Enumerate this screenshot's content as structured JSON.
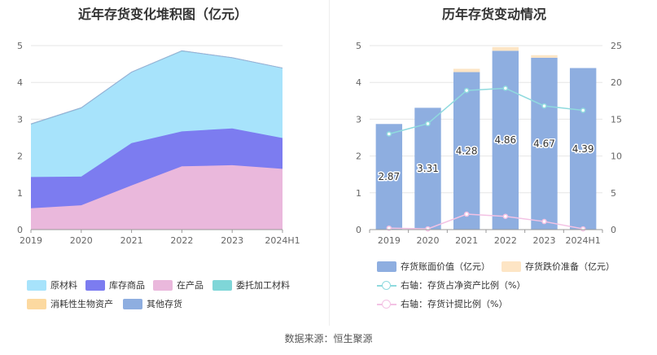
{
  "left_chart": {
    "title": "近年存货变化堆积图（亿元）",
    "legend": [
      {
        "name": "原材料",
        "color": "#a7e3fb"
      },
      {
        "name": "库存商品",
        "color": "#7c7cf0"
      },
      {
        "name": "在产品",
        "color": "#eab8dc"
      },
      {
        "name": "委托加工材料",
        "color": "#7fd6d8"
      },
      {
        "name": "消耗性生物资产",
        "color": "#fcd9a0"
      },
      {
        "name": "其他存货",
        "color": "#8eaee0"
      }
    ]
  },
  "right_chart": {
    "title": "历年存货变动情况",
    "legend": [
      {
        "name": "存货账面价值（亿元）",
        "color": "#8eaee0",
        "kind": "bar"
      },
      {
        "name": "存货跌价准备（亿元）",
        "color": "#fde5c5",
        "kind": "bar"
      },
      {
        "name": "右轴：存货占净资产比例（%）",
        "color": "#8fdade",
        "kind": "line"
      },
      {
        "name": "右轴：存货计提比例（%）",
        "color": "#f3c2e4",
        "kind": "line"
      }
    ]
  },
  "chart_data": [
    {
      "type": "area",
      "stacked": true,
      "title": "近年存货变化堆积图（亿元）",
      "categories": [
        "2019",
        "2020",
        "2021",
        "2022",
        "2023",
        "2024H1"
      ],
      "ylim": [
        0,
        5
      ],
      "yticks": [
        0,
        1,
        2,
        3,
        4,
        5
      ],
      "grid": true,
      "legend_position": "bottom",
      "series": [
        {
          "name": "在产品",
          "color": "#eab8dc",
          "values": [
            0.58,
            0.66,
            1.2,
            1.72,
            1.75,
            1.65
          ]
        },
        {
          "name": "库存商品",
          "color": "#7c7cf0",
          "values": [
            0.85,
            0.78,
            1.15,
            0.95,
            1.0,
            0.84
          ]
        },
        {
          "name": "原材料",
          "color": "#a7e3fb",
          "values": [
            1.42,
            1.85,
            1.92,
            2.17,
            1.92,
            1.89
          ]
        },
        {
          "name": "委托加工材料",
          "color": "#7fd6d8",
          "values": [
            0.02,
            0.02,
            0.01,
            0.02,
            0.0,
            0.01
          ]
        },
        {
          "name": "消耗性生物资产",
          "color": "#fcd9a0",
          "values": [
            0,
            0,
            0,
            0,
            0,
            0
          ]
        },
        {
          "name": "其他存货",
          "color": "#8eaee0",
          "values": [
            0,
            0,
            0,
            0,
            0,
            0
          ]
        }
      ]
    },
    {
      "type": "bar",
      "stacked": true,
      "title": "历年存货变动情况",
      "categories": [
        "2019",
        "2020",
        "2021",
        "2022",
        "2023",
        "2024H1"
      ],
      "ylim": [
        0,
        5
      ],
      "yticks": [
        0,
        1,
        2,
        3,
        4,
        5
      ],
      "y2lim": [
        0,
        25
      ],
      "y2ticks": [
        0,
        5,
        10,
        15,
        20,
        25
      ],
      "grid": true,
      "legend_position": "bottom",
      "series": [
        {
          "name": "存货账面价值（亿元）",
          "kind": "bar",
          "color": "#8eaee0",
          "values": [
            2.87,
            3.31,
            4.28,
            4.86,
            4.67,
            4.39
          ],
          "labels": [
            "2.87",
            "3.31",
            "4.28",
            "4.86",
            "4.67",
            "4.39"
          ]
        },
        {
          "name": "存货跌价准备（亿元）",
          "kind": "bar",
          "color": "#fde5c5",
          "values": [
            0.0,
            0.0,
            0.09,
            0.1,
            0.07,
            0.0
          ]
        },
        {
          "name": "右轴：存货占净资产比例（%）",
          "kind": "line",
          "axis": "right",
          "color": "#8fdade",
          "values": [
            13.0,
            14.4,
            18.9,
            19.2,
            16.8,
            16.2
          ]
        },
        {
          "name": "右轴：存货计提比例（%）",
          "kind": "line",
          "axis": "right",
          "color": "#f3c2e4",
          "values": [
            0.2,
            0.1,
            2.1,
            1.8,
            1.1,
            0.1
          ]
        }
      ]
    }
  ],
  "footer": {
    "source": "数据来源：恒生聚源"
  }
}
